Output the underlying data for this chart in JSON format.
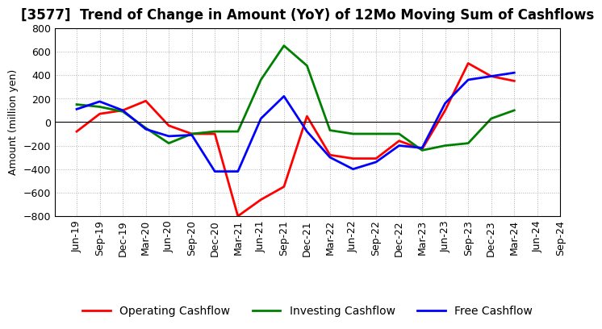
{
  "title": "[3577]  Trend of Change in Amount (YoY) of 12Mo Moving Sum of Cashflows",
  "ylabel": "Amount (million yen)",
  "xlabels": [
    "Jun-19",
    "Sep-19",
    "Dec-19",
    "Mar-20",
    "Jun-20",
    "Sep-20",
    "Dec-20",
    "Mar-21",
    "Jun-21",
    "Sep-21",
    "Dec-21",
    "Mar-22",
    "Jun-22",
    "Sep-22",
    "Dec-22",
    "Mar-23",
    "Jun-23",
    "Sep-23",
    "Dec-23",
    "Mar-24",
    "Jun-24",
    "Sep-24"
  ],
  "operating": [
    -80,
    70,
    100,
    180,
    -30,
    -100,
    -100,
    -800,
    -660,
    -550,
    50,
    -280,
    -310,
    -310,
    -160,
    -230,
    100,
    500,
    390,
    350,
    null,
    null
  ],
  "investing": [
    150,
    130,
    90,
    -50,
    -180,
    -100,
    -80,
    -80,
    360,
    650,
    480,
    -70,
    -100,
    -100,
    -100,
    -240,
    -200,
    -180,
    30,
    100,
    null,
    null
  ],
  "free": [
    110,
    175,
    100,
    -60,
    -120,
    -110,
    -420,
    -420,
    30,
    220,
    -80,
    -300,
    -400,
    -340,
    -200,
    -220,
    160,
    360,
    390,
    420,
    null,
    null
  ],
  "operating_color": "#ff0000",
  "investing_color": "#008000",
  "free_color": "#0000ff",
  "ylim": [
    -800,
    800
  ],
  "yticks": [
    -800,
    -600,
    -400,
    -200,
    0,
    200,
    400,
    600,
    800
  ],
  "background_color": "#ffffff",
  "grid_color": "#b0b0b0",
  "title_fontsize": 12,
  "axis_fontsize": 9,
  "legend_fontsize": 10,
  "linewidth": 2.0
}
